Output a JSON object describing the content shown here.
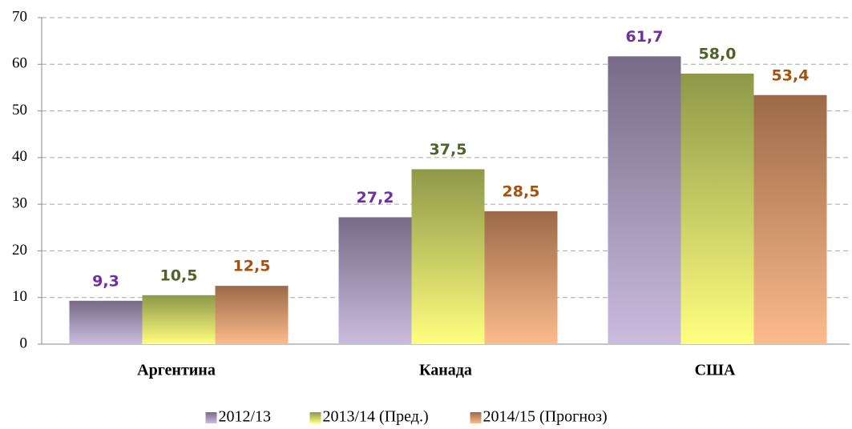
{
  "chart_data": {
    "type": "bar",
    "categories": [
      "Аргентина",
      "Канада",
      "США"
    ],
    "series": [
      {
        "name": "2012/13",
        "gradient": [
          "#776b87",
          "#cbbcdf"
        ],
        "label_color": "#7030a0",
        "values": [
          9.3,
          27.2,
          61.7
        ],
        "value_labels": [
          "9,3",
          "27,2",
          "61,7"
        ]
      },
      {
        "name": "2013/14 (Пред.)",
        "gradient": [
          "#8e9848",
          "#ffff7f"
        ],
        "label_color": "#4f6228",
        "values": [
          10.5,
          37.5,
          58.0
        ],
        "value_labels": [
          "10,5",
          "37,5",
          "58,0"
        ]
      },
      {
        "name": "2014/15 (Прогноз)",
        "gradient": [
          "#9c6a48",
          "#fcbb8b"
        ],
        "label_color": "#a5520e",
        "values": [
          12.5,
          28.5,
          53.4
        ],
        "value_labels": [
          "12,5",
          "28,5",
          "53,4"
        ]
      }
    ],
    "ylim": [
      0,
      70
    ],
    "yticks": [
      0,
      10,
      20,
      30,
      40,
      50,
      60,
      70
    ],
    "grid": true,
    "legend": "bottom"
  }
}
